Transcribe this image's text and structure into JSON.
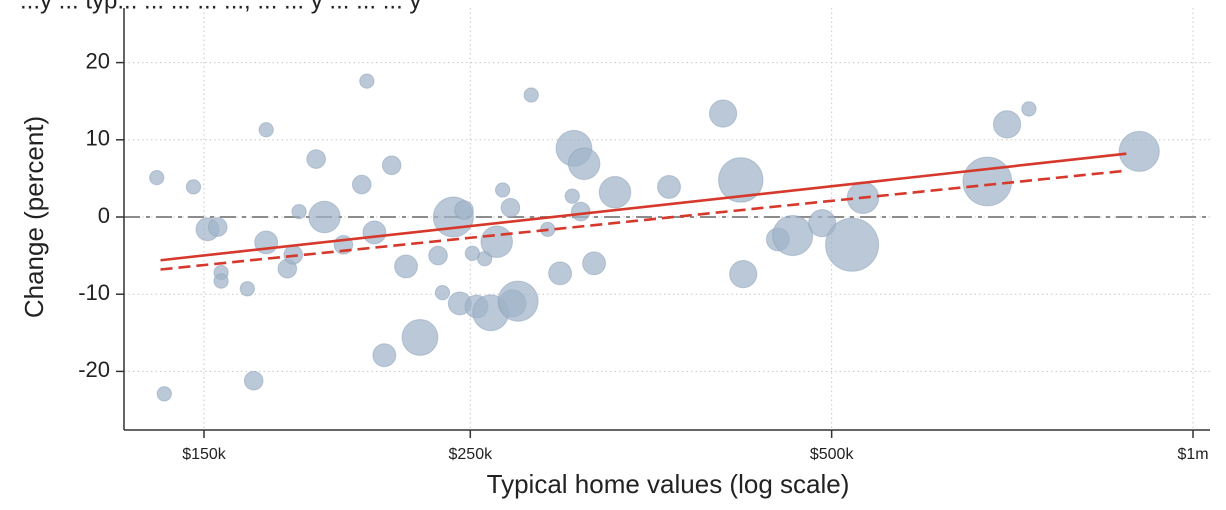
{
  "chart_data": {
    "type": "scatter",
    "title": "",
    "title_partial": "...y ... typ... ... ... ... ..., ... ... y ... ... ... y",
    "xlabel": "Typical home values (log scale)",
    "ylabel": "Change (percent)",
    "x_scale": "log",
    "xlim": [
      130000,
      1000000
    ],
    "ylim": [
      -27,
      27
    ],
    "x_ticks": [
      {
        "value": 150000,
        "label": "$150k"
      },
      {
        "value": 250000,
        "label": "$250k"
      },
      {
        "value": 500000,
        "label": "$500k"
      },
      {
        "value": 1000000,
        "label": "$1m"
      }
    ],
    "y_ticks": [
      {
        "value": 20,
        "label": "20"
      },
      {
        "value": 10,
        "label": "10"
      },
      {
        "value": 0,
        "label": "0"
      },
      {
        "value": -10,
        "label": "-10"
      },
      {
        "value": -20,
        "label": "-20"
      }
    ],
    "grid": true,
    "reference_line": {
      "y": 0,
      "style": "long-dash",
      "color": "#8c8c8c"
    },
    "marker_color": "#9fb3c8",
    "fit_lines": [
      {
        "style": "solid",
        "color": "#d6382b",
        "points": [
          [
            138000,
            -5.6
          ],
          [
            880000,
            8.2
          ]
        ]
      },
      {
        "style": "dashed",
        "color": "#d6382b",
        "points": [
          [
            138000,
            -6.8
          ],
          [
            880000,
            6.0
          ]
        ]
      }
    ],
    "points": [
      {
        "x": 137000,
        "y": 5.1,
        "size": 1
      },
      {
        "x": 139000,
        "y": -22.9,
        "size": 1
      },
      {
        "x": 147000,
        "y": 3.9,
        "size": 1
      },
      {
        "x": 151000,
        "y": -1.6,
        "size": 3
      },
      {
        "x": 154000,
        "y": -1.3,
        "size": 2
      },
      {
        "x": 155000,
        "y": -7.2,
        "size": 1
      },
      {
        "x": 155000,
        "y": -8.3,
        "size": 1
      },
      {
        "x": 163000,
        "y": -9.3,
        "size": 1
      },
      {
        "x": 165000,
        "y": -21.2,
        "size": 2
      },
      {
        "x": 169000,
        "y": 11.3,
        "size": 1
      },
      {
        "x": 169000,
        "y": -3.3,
        "size": 3
      },
      {
        "x": 176000,
        "y": -6.7,
        "size": 2
      },
      {
        "x": 178000,
        "y": -4.9,
        "size": 2
      },
      {
        "x": 180000,
        "y": 0.7,
        "size": 1
      },
      {
        "x": 186000,
        "y": 7.5,
        "size": 2
      },
      {
        "x": 189000,
        "y": 0.0,
        "size": 5
      },
      {
        "x": 196000,
        "y": -3.6,
        "size": 2
      },
      {
        "x": 203000,
        "y": 4.2,
        "size": 2
      },
      {
        "x": 205000,
        "y": 17.6,
        "size": 1
      },
      {
        "x": 208000,
        "y": -2.0,
        "size": 3
      },
      {
        "x": 212000,
        "y": -17.9,
        "size": 3
      },
      {
        "x": 215000,
        "y": 6.7,
        "size": 2
      },
      {
        "x": 221000,
        "y": -6.4,
        "size": 3
      },
      {
        "x": 227000,
        "y": -15.6,
        "size": 6
      },
      {
        "x": 235000,
        "y": -5.0,
        "size": 2
      },
      {
        "x": 237000,
        "y": -9.8,
        "size": 1
      },
      {
        "x": 242000,
        "y": 0.0,
        "size": 7
      },
      {
        "x": 245000,
        "y": -11.2,
        "size": 3
      },
      {
        "x": 247000,
        "y": 0.9,
        "size": 2
      },
      {
        "x": 251000,
        "y": -4.7,
        "size": 1
      },
      {
        "x": 253000,
        "y": -11.6,
        "size": 3
      },
      {
        "x": 257000,
        "y": -5.4,
        "size": 1
      },
      {
        "x": 260000,
        "y": -12.4,
        "size": 6
      },
      {
        "x": 263000,
        "y": -3.2,
        "size": 5
      },
      {
        "x": 266000,
        "y": 3.5,
        "size": 1
      },
      {
        "x": 270000,
        "y": 1.2,
        "size": 2
      },
      {
        "x": 271000,
        "y": -11.2,
        "size": 4
      },
      {
        "x": 274000,
        "y": -10.9,
        "size": 7
      },
      {
        "x": 281000,
        "y": 15.8,
        "size": 1
      },
      {
        "x": 290000,
        "y": -1.6,
        "size": 1
      },
      {
        "x": 297000,
        "y": -7.3,
        "size": 3
      },
      {
        "x": 304000,
        "y": 2.7,
        "size": 1
      },
      {
        "x": 305000,
        "y": 8.9,
        "size": 6
      },
      {
        "x": 309000,
        "y": 0.7,
        "size": 2
      },
      {
        "x": 311000,
        "y": 6.9,
        "size": 5
      },
      {
        "x": 317000,
        "y": -6.0,
        "size": 3
      },
      {
        "x": 330000,
        "y": 3.2,
        "size": 5
      },
      {
        "x": 366000,
        "y": 3.9,
        "size": 3
      },
      {
        "x": 406000,
        "y": 13.4,
        "size": 4
      },
      {
        "x": 420000,
        "y": 4.8,
        "size": 8
      },
      {
        "x": 422000,
        "y": -7.4,
        "size": 4
      },
      {
        "x": 451000,
        "y": -2.9,
        "size": 3
      },
      {
        "x": 464000,
        "y": -2.4,
        "size": 7
      },
      {
        "x": 491000,
        "y": -0.8,
        "size": 4
      },
      {
        "x": 520000,
        "y": -3.6,
        "size": 10
      },
      {
        "x": 531000,
        "y": 2.5,
        "size": 5
      },
      {
        "x": 674000,
        "y": 4.6,
        "size": 9
      },
      {
        "x": 700000,
        "y": 12.0,
        "size": 4
      },
      {
        "x": 730000,
        "y": 14.0,
        "size": 1
      },
      {
        "x": 902000,
        "y": 8.5,
        "size": 7
      }
    ]
  }
}
